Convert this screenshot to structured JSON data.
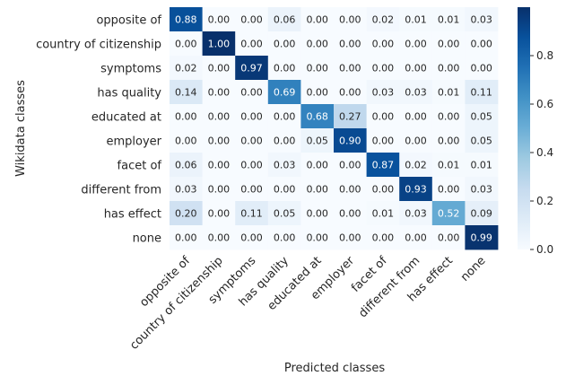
{
  "chart_data": {
    "type": "heatmap",
    "title": "",
    "xlabel": "Predicted classes",
    "ylabel": "Wikidata classes",
    "rows": [
      "opposite of",
      "country of citizenship",
      "symptoms",
      "has quality",
      "educated at",
      "employer",
      "facet of",
      "different from",
      "has effect",
      "none"
    ],
    "columns": [
      "opposite of",
      "country of citizenship",
      "symptoms",
      "has quality",
      "educated at",
      "employer",
      "facet of",
      "different from",
      "has effect",
      "none"
    ],
    "values": [
      [
        0.88,
        0.0,
        0.0,
        0.06,
        0.0,
        0.0,
        0.02,
        0.01,
        0.01,
        0.03
      ],
      [
        0.0,
        1.0,
        0.0,
        0.0,
        0.0,
        0.0,
        0.0,
        0.0,
        0.0,
        0.0
      ],
      [
        0.02,
        0.0,
        0.97,
        0.0,
        0.0,
        0.0,
        0.0,
        0.0,
        0.0,
        0.0
      ],
      [
        0.14,
        0.0,
        0.0,
        0.69,
        0.0,
        0.0,
        0.03,
        0.03,
        0.01,
        0.11
      ],
      [
        0.0,
        0.0,
        0.0,
        0.0,
        0.68,
        0.27,
        0.0,
        0.0,
        0.0,
        0.05
      ],
      [
        0.0,
        0.0,
        0.0,
        0.0,
        0.05,
        0.9,
        0.0,
        0.0,
        0.0,
        0.05
      ],
      [
        0.06,
        0.0,
        0.0,
        0.03,
        0.0,
        0.0,
        0.87,
        0.02,
        0.01,
        0.01
      ],
      [
        0.03,
        0.0,
        0.0,
        0.0,
        0.0,
        0.0,
        0.0,
        0.93,
        0.0,
        0.03
      ],
      [
        0.2,
        0.0,
        0.11,
        0.05,
        0.0,
        0.0,
        0.01,
        0.03,
        0.52,
        0.09
      ],
      [
        0.0,
        0.0,
        0.0,
        0.0,
        0.0,
        0.0,
        0.0,
        0.0,
        0.0,
        0.99
      ]
    ],
    "colormap": "Blues",
    "vmin": 0.0,
    "vmax": 1.0,
    "colorbar_ticks": [
      "0.0",
      "0.2",
      "0.4",
      "0.6",
      "0.8"
    ]
  }
}
